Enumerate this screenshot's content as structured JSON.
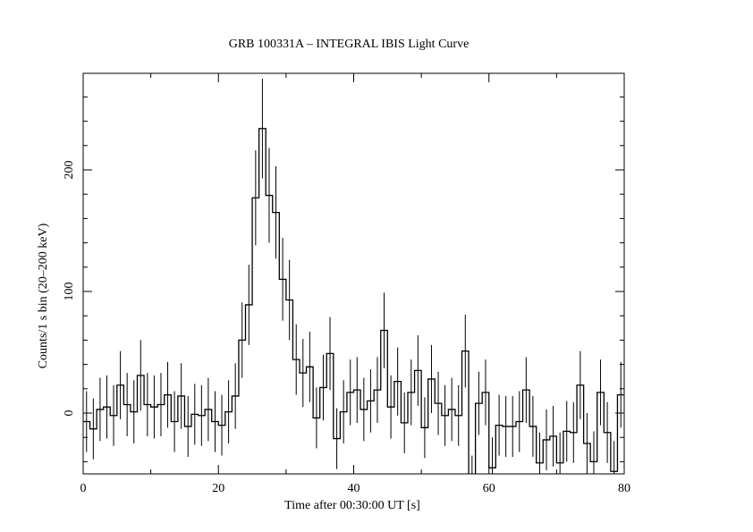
{
  "chart_data": {
    "type": "line",
    "style": "histogram-step-with-errorbars",
    "title": "GRB 100331A – INTEGRAL IBIS Light Curve",
    "xlabel": "Time after 00:30:00 UT [s]",
    "ylabel": "Counts/1 s bin (20–200 keV)",
    "xlim": [
      0,
      80
    ],
    "ylim": [
      -50,
      280
    ],
    "xticks": [
      0,
      20,
      40,
      60,
      80
    ],
    "xtick_labels": [
      "0",
      "20",
      "40",
      "60",
      "80"
    ],
    "yticks": [
      0,
      100,
      200
    ],
    "ytick_labels": [
      "0",
      "100",
      "200"
    ],
    "x_minor_step": 10,
    "y_minor_step": 20,
    "grid": false,
    "bin_width": 1,
    "bin_start": 0,
    "values": [
      -7,
      -13,
      3,
      5,
      -2,
      23,
      7,
      1,
      31,
      7,
      5,
      7,
      15,
      -7,
      14,
      -11,
      -1,
      -2,
      3,
      -7,
      -10,
      1,
      14,
      60,
      89,
      177,
      234,
      179,
      165,
      110,
      93,
      44,
      33,
      38,
      -4,
      21,
      49,
      -21,
      1,
      17,
      19,
      3,
      10,
      19,
      68,
      5,
      26,
      -8,
      17,
      35,
      -12,
      28,
      8,
      -2,
      3,
      -2,
      51,
      -60,
      8,
      17,
      -45,
      -10,
      -11,
      -11,
      -7,
      19,
      -11,
      -41,
      -22,
      -19,
      -41,
      -15,
      -16,
      23,
      -25,
      -40,
      17,
      -16,
      -48,
      15
    ],
    "errors": [
      25,
      25,
      26,
      26,
      25,
      28,
      26,
      26,
      29,
      26,
      26,
      26,
      27,
      25,
      27,
      25,
      25,
      25,
      26,
      25,
      25,
      26,
      27,
      31,
      33,
      39,
      41,
      39,
      38,
      34,
      33,
      29,
      28,
      29,
      25,
      27,
      30,
      25,
      26,
      27,
      27,
      26,
      26,
      27,
      31,
      26,
      28,
      25,
      27,
      29,
      25,
      28,
      26,
      25,
      26,
      25,
      30,
      25,
      26,
      27,
      25,
      25,
      25,
      25,
      25,
      27,
      25,
      25,
      25,
      25,
      25,
      25,
      25,
      28,
      25,
      25,
      27,
      25,
      25,
      27
    ],
    "line_color": "#000000"
  }
}
